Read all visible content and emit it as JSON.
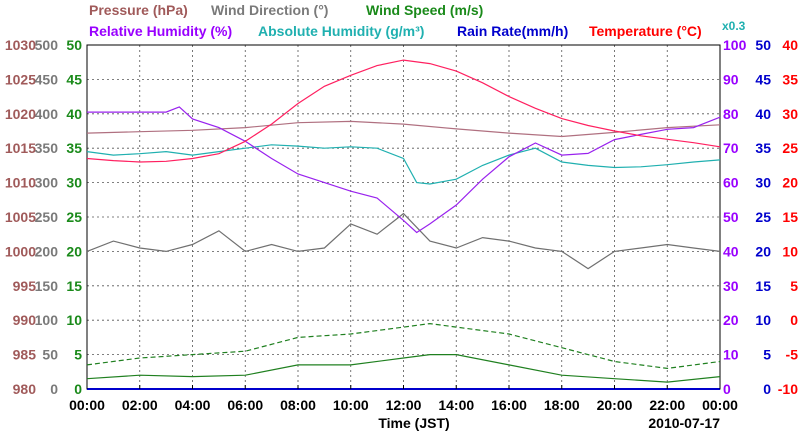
{
  "chart_data": {
    "type": "line",
    "legend": {
      "pressure": "Pressure (hPa)",
      "wind_direction": "Wind Direction (°)",
      "wind_speed": "Wind Speed (m/s)",
      "relative_humidity": "Relative Humidity (%)",
      "absolute_humidity": "Absolute Humidity (g/m³)",
      "absolute_humidity_factor": "x0.3",
      "rain_rate": "Rain Rate(mm/h)",
      "temperature": "Temperature (°C)"
    },
    "xlabel": "Time (JST)",
    "date": "2010-07-17",
    "x_ticks": [
      "00:00",
      "02:00",
      "04:00",
      "06:00",
      "08:00",
      "10:00",
      "12:00",
      "14:00",
      "16:00",
      "18:00",
      "20:00",
      "22:00",
      "00:00"
    ],
    "axes": {
      "pressure": {
        "color": "#a05a5a",
        "ticks": [
          "1030",
          "1025",
          "1020",
          "1015",
          "1010",
          "1005",
          "1000",
          "995",
          "990",
          "985",
          "980"
        ]
      },
      "wind_direction": {
        "color": "#7a7a7a",
        "ticks": [
          "500",
          "450",
          "400",
          "350",
          "300",
          "250",
          "200",
          "150",
          "100",
          "50",
          "0"
        ]
      },
      "wind_speed": {
        "color": "#1a8a1a",
        "ticks": [
          "50",
          "45",
          "40",
          "35",
          "30",
          "25",
          "20",
          "15",
          "10",
          "5",
          "0"
        ]
      },
      "relative_humidity": {
        "color": "#9900ff",
        "ticks": [
          "100",
          "90",
          "80",
          "70",
          "60",
          "50",
          "40",
          "30",
          "20",
          "10",
          "0"
        ]
      },
      "rain_rate": {
        "color": "#0000cc",
        "ticks": [
          "50",
          "45",
          "40",
          "35",
          "30",
          "25",
          "20",
          "15",
          "10",
          "5",
          "0"
        ]
      },
      "temperature": {
        "color": "#ff0000",
        "ticks": [
          "40",
          "35",
          "30",
          "25",
          "20",
          "15",
          "10",
          "5",
          "0",
          "-5",
          "-10"
        ]
      }
    },
    "series": {
      "temperature": {
        "color": "#ff2060",
        "x": [
          0,
          1,
          2,
          3,
          4,
          5,
          6,
          7,
          8,
          9,
          10,
          11,
          12,
          13,
          14,
          15,
          16,
          17,
          18,
          19,
          20,
          21,
          22,
          23,
          24
        ],
        "y": [
          23.5,
          23.2,
          23.0,
          23.1,
          23.5,
          24.2,
          26.0,
          28.5,
          31.5,
          34.0,
          35.6,
          37.0,
          37.8,
          37.3,
          36.2,
          34.5,
          32.5,
          30.8,
          29.3,
          28.3,
          27.5,
          26.8,
          26.3,
          25.8,
          25.2
        ]
      },
      "pressure": {
        "color": "#b07080",
        "x": [
          0,
          2,
          4,
          6,
          8,
          10,
          12,
          14,
          16,
          18,
          20,
          22,
          24
        ],
        "y": [
          1017.2,
          1017.4,
          1017.6,
          1018.0,
          1018.7,
          1018.9,
          1018.5,
          1017.8,
          1017.2,
          1016.7,
          1017.3,
          1018.0,
          1018.4
        ]
      },
      "absolute_humidity": {
        "color": "#20b0b0",
        "x": [
          0,
          1,
          2,
          3,
          4,
          5,
          6,
          7,
          8,
          9,
          10,
          11,
          12,
          12.5,
          13,
          14,
          15,
          16,
          17,
          18,
          19,
          20,
          21,
          22,
          23,
          24
        ],
        "y": [
          34.5,
          34.0,
          34.2,
          34.5,
          34.0,
          34.5,
          35.0,
          35.5,
          35.3,
          35.0,
          35.2,
          35.0,
          33.5,
          30.0,
          29.8,
          30.5,
          32.5,
          34.0,
          35.0,
          33.0,
          32.5,
          32.2,
          32.3,
          32.6,
          33.0,
          33.3
        ]
      },
      "relative_humidity": {
        "color": "#9922ee",
        "x": [
          0,
          1,
          2,
          3,
          3.5,
          4,
          5,
          6,
          7,
          8,
          9,
          10,
          11,
          12,
          12.5,
          13,
          14,
          15,
          16,
          17,
          18,
          19,
          20,
          21,
          22,
          23,
          24
        ],
        "y": [
          80.5,
          80.5,
          80.5,
          80.5,
          82.0,
          78.5,
          76.0,
          72.0,
          67.0,
          62.5,
          60.0,
          57.5,
          55.5,
          49.0,
          45.5,
          48.0,
          53.5,
          61.0,
          67.5,
          71.5,
          68.0,
          68.5,
          72.5,
          74.0,
          75.5,
          76.0,
          79.0
        ]
      },
      "wind_direction": {
        "color": "#707070",
        "x": [
          0,
          1,
          2,
          3,
          4,
          5,
          6,
          7,
          8,
          9,
          10,
          11,
          12,
          13,
          14,
          15,
          16,
          17,
          18,
          19,
          20,
          21,
          22,
          23,
          24
        ],
        "y": [
          200,
          215,
          205,
          200,
          210,
          230,
          200,
          210,
          200,
          205,
          240,
          225,
          255,
          215,
          205,
          220,
          215,
          205,
          200,
          175,
          200,
          205,
          210,
          205,
          200
        ]
      },
      "wind_speed": {
        "color": "#208020",
        "x": [
          0,
          2,
          4,
          6,
          8,
          10,
          12,
          13,
          14,
          16,
          18,
          20,
          22,
          24
        ],
        "y": [
          1.5,
          2.0,
          1.8,
          2.0,
          3.5,
          3.5,
          4.5,
          5.0,
          5.0,
          3.5,
          2.0,
          1.5,
          1.0,
          1.8
        ]
      },
      "wind_speed_gust": {
        "color": "#208020",
        "x": [
          0,
          2,
          4,
          6,
          8,
          10,
          12,
          13,
          14,
          16,
          18,
          20,
          22,
          24
        ],
        "y": [
          3.5,
          4.5,
          5.0,
          5.5,
          7.5,
          8.0,
          9.0,
          9.5,
          9.0,
          8.0,
          6.0,
          4.0,
          3.0,
          4.0
        ]
      },
      "rain_rate": {
        "color": "#0000cc",
        "x": [
          0,
          24
        ],
        "y": [
          0,
          0
        ]
      }
    }
  }
}
